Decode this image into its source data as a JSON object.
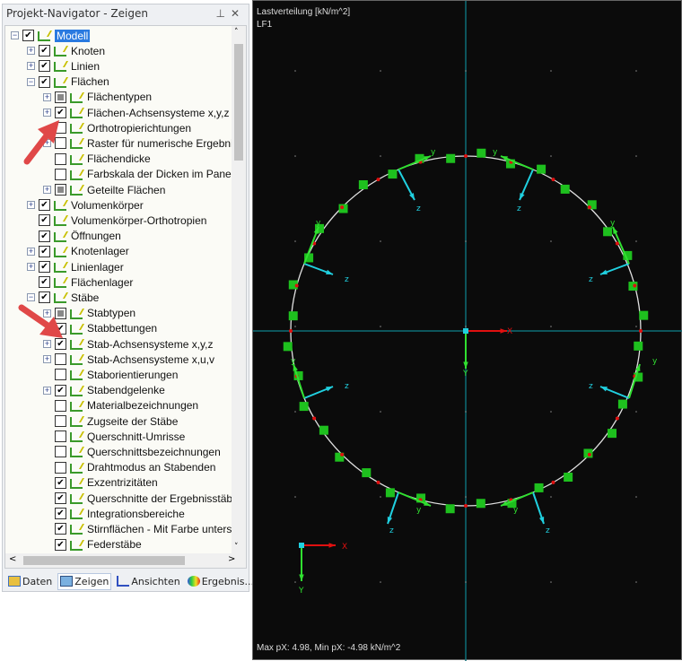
{
  "navigator": {
    "title": "Projekt-Navigator - Zeigen",
    "pin_icon": "pin-icon",
    "close_icon": "close-icon",
    "items": [
      {
        "label": "Modell",
        "level": 0,
        "expander": "minus",
        "check": "checked",
        "selected": true
      },
      {
        "label": "Knoten",
        "level": 1,
        "expander": "plus",
        "check": "checked"
      },
      {
        "label": "Linien",
        "level": 1,
        "expander": "plus",
        "check": "checked"
      },
      {
        "label": "Flächen",
        "level": 1,
        "expander": "minus",
        "check": "checked"
      },
      {
        "label": "Flächentypen",
        "level": 2,
        "expander": "plus",
        "check": "partial"
      },
      {
        "label": "Flächen-Achsensysteme x,y,z",
        "level": 2,
        "expander": "plus",
        "check": "checked"
      },
      {
        "label": "Orthotropierichtungen",
        "level": 2,
        "expander": "none",
        "check": "unchecked"
      },
      {
        "label": "Raster für numerische Ergebnis",
        "level": 2,
        "expander": "plus",
        "check": "unchecked"
      },
      {
        "label": "Flächendicke",
        "level": 2,
        "expander": "none",
        "check": "unchecked"
      },
      {
        "label": "Farbskala der Dicken im Panel",
        "level": 2,
        "expander": "none",
        "check": "unchecked"
      },
      {
        "label": "Geteilte Flächen",
        "level": 2,
        "expander": "plus",
        "check": "partial"
      },
      {
        "label": "Volumenkörper",
        "level": 1,
        "expander": "plus",
        "check": "checked"
      },
      {
        "label": "Volumenkörper-Orthotropien",
        "level": 1,
        "expander": "none",
        "check": "checked"
      },
      {
        "label": "Öffnungen",
        "level": 1,
        "expander": "none",
        "check": "checked"
      },
      {
        "label": "Knotenlager",
        "level": 1,
        "expander": "plus",
        "check": "checked"
      },
      {
        "label": "Linienlager",
        "level": 1,
        "expander": "plus",
        "check": "checked"
      },
      {
        "label": "Flächenlager",
        "level": 1,
        "expander": "none",
        "check": "checked"
      },
      {
        "label": "Stäbe",
        "level": 1,
        "expander": "minus",
        "check": "checked"
      },
      {
        "label": "Stabtypen",
        "level": 2,
        "expander": "plus",
        "check": "partial"
      },
      {
        "label": "Stabbettungen",
        "level": 2,
        "expander": "none",
        "check": "checked"
      },
      {
        "label": "Stab-Achsensysteme x,y,z",
        "level": 2,
        "expander": "plus",
        "check": "checked"
      },
      {
        "label": "Stab-Achsensysteme x,u,v",
        "level": 2,
        "expander": "plus",
        "check": "unchecked"
      },
      {
        "label": "Staborientierungen",
        "level": 2,
        "expander": "none",
        "check": "unchecked"
      },
      {
        "label": "Stabendgelenke",
        "level": 2,
        "expander": "plus",
        "check": "checked"
      },
      {
        "label": "Materialbezeichnungen",
        "level": 2,
        "expander": "none",
        "check": "unchecked"
      },
      {
        "label": "Zugseite der Stäbe",
        "level": 2,
        "expander": "none",
        "check": "unchecked"
      },
      {
        "label": "Querschnitt-Umrisse",
        "level": 2,
        "expander": "none",
        "check": "unchecked"
      },
      {
        "label": "Querschnittsbezeichnungen",
        "level": 2,
        "expander": "none",
        "check": "unchecked"
      },
      {
        "label": "Drahtmodus an Stabenden",
        "level": 2,
        "expander": "none",
        "check": "unchecked"
      },
      {
        "label": "Exzentrizitäten",
        "level": 2,
        "expander": "none",
        "check": "checked"
      },
      {
        "label": "Querschnitte der Ergebnisstäbe",
        "level": 2,
        "expander": "none",
        "check": "checked"
      },
      {
        "label": "Integrationsbereiche",
        "level": 2,
        "expander": "none",
        "check": "checked"
      },
      {
        "label": "Stirnflächen - Mit Farbe untersc",
        "level": 2,
        "expander": "none",
        "check": "checked"
      },
      {
        "label": "Federstäbe",
        "level": 2,
        "expander": "none",
        "check": "checked"
      }
    ],
    "tabs": [
      {
        "label": "Daten",
        "icon": "data-icon"
      },
      {
        "label": "Zeigen",
        "icon": "display-icon",
        "active": true
      },
      {
        "label": "Ansichten",
        "icon": "views-icon"
      },
      {
        "label": "Ergebnis...",
        "icon": "results-icon"
      }
    ]
  },
  "annotation_color": "#e04848",
  "viewport": {
    "load_title": "Lastverteilung [kN/m^2]",
    "load_case": "LF1",
    "footer": "Max pX: 4.98, Min pX: -4.98 kN/m^2",
    "axis_labels": {
      "x": "X",
      "y": "Y",
      "local_y": "y",
      "local_z": "z"
    },
    "colors": {
      "background": "#0b0b0b",
      "circle": "#e0e0e0",
      "load": "#1ec01e",
      "node": "#e01010",
      "z_axis": "#20d0e0",
      "y_axis": "#30e030",
      "global_x": "#e01010",
      "guide": "#0e6e78"
    }
  }
}
